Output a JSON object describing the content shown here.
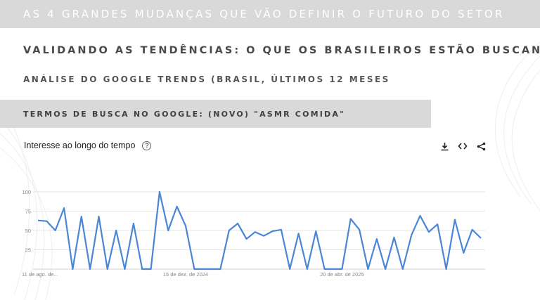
{
  "banner": {
    "text": "AS 4 GRANDES MUDANÇAS QUE VÃO DEFINIR O FUTURO DO SETOR"
  },
  "section": {
    "title": "VALIDANDO AS TENDÊNCIAS: O QUE OS BRASILEIROS ESTÃO BUSCANDO",
    "subtitle": "ANÁLISE DO GOOGLE TRENDS (BRASIL, ÚLTIMOS 12 MESES"
  },
  "term_bar": {
    "text": "TERMOS DE BUSCA NO GOOGLE: (NOVO) \"ASMR COMIDA\""
  },
  "chart_header": {
    "title": "Interesse ao longo do tempo",
    "help_glyph": "?"
  },
  "actions": [
    "download-icon",
    "embed-icon",
    "share-icon"
  ],
  "colors": {
    "line": "#4a86d6",
    "grid": "#e6e6e6",
    "banner": "#d9d9d9"
  },
  "chart_data": {
    "type": "line",
    "title": "Interesse ao longo do tempo",
    "ylim": [
      0,
      100
    ],
    "yticks": [
      100,
      75,
      50,
      25
    ],
    "x_labels": [
      "11 de ago. de...",
      "15 de dez. de 2024",
      "20 de abr. de 2025"
    ],
    "x_label_index": [
      0,
      17,
      35
    ],
    "grid": true,
    "series": [
      {
        "values": [
          63,
          62,
          50,
          79,
          0,
          68,
          0,
          68,
          0,
          50,
          0,
          59,
          0,
          0,
          100,
          50,
          81,
          56,
          0,
          0,
          0,
          0,
          50,
          59,
          39,
          48,
          43,
          49,
          51,
          0,
          46,
          0,
          49,
          0,
          0,
          0,
          65,
          51,
          0,
          39,
          0,
          41,
          0,
          44,
          69,
          48,
          58,
          0,
          64,
          21,
          51,
          40
        ]
      }
    ]
  }
}
